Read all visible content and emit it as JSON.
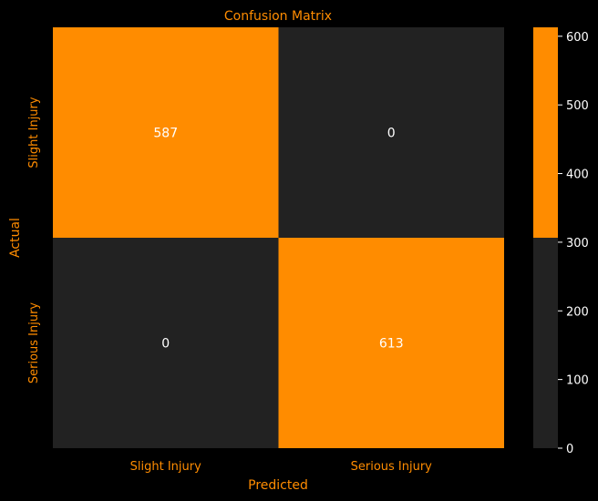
{
  "chart_data": {
    "type": "heatmap",
    "title": "Confusion Matrix",
    "xlabel": "Predicted",
    "ylabel": "Actual",
    "x_categories": [
      "Slight Injury",
      "Serious Injury"
    ],
    "y_categories": [
      "Slight Injury",
      "Serious Injury"
    ],
    "values": [
      [
        587,
        0
      ],
      [
        0,
        613
      ]
    ],
    "colorbar": {
      "min": 0,
      "max": 613,
      "ticks": [
        "0",
        "100",
        "200",
        "300",
        "400",
        "500",
        "600"
      ],
      "threshold": 306.5
    },
    "colors": {
      "background": "#000000",
      "low": "#222222",
      "high": "#ff8c00",
      "label_text": "#ff8c00",
      "cell_text": "#ffffff",
      "tick_text": "#ffffff"
    },
    "grid": false,
    "legend": "colorbar-right"
  }
}
